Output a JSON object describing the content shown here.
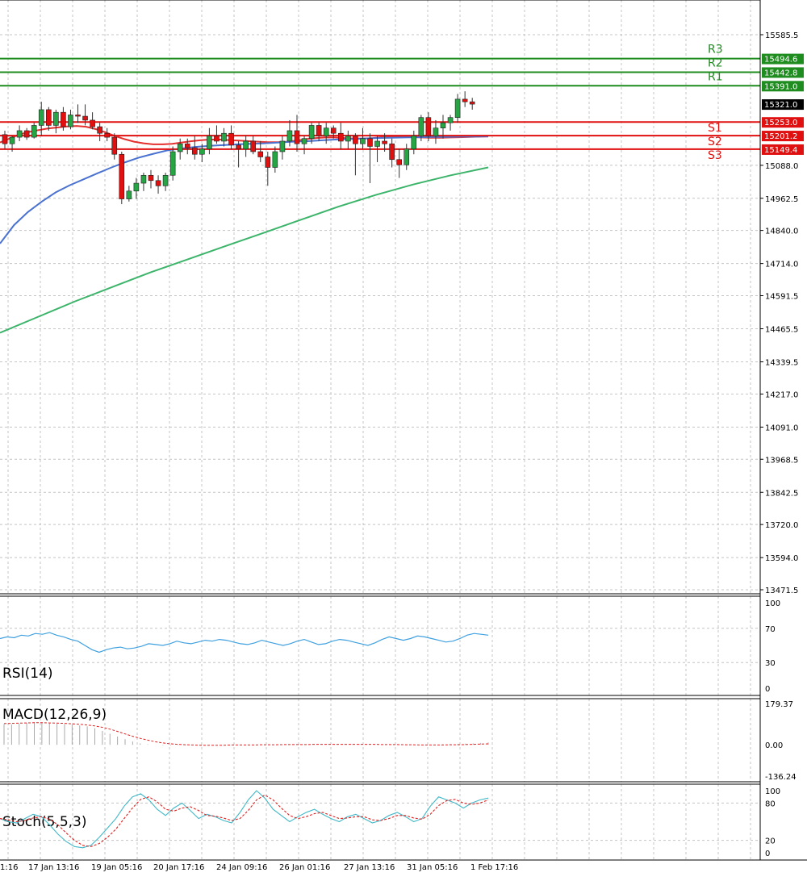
{
  "colors": {
    "grid": "#c4c4c4",
    "frame": "#000000",
    "bull_candle": "#26a544",
    "bear_candle": "#e01010",
    "resistance": "#1e8c1e",
    "support": "#e01010",
    "ma_red": "#e53030",
    "ma_blue": "#4a72d0",
    "ma_green": "#3cb46a",
    "rsi": "#3fa0e0",
    "macd_hist": "#a8a8a8",
    "macd_signal": "#e02020",
    "stoch_main": "#40b8c8",
    "stoch_signal": "#e02020",
    "price_tag_current": "#000000"
  },
  "chart_data": [
    {
      "type": "candlestick",
      "panel": "price",
      "ylim": [
        13471.5,
        15660
      ],
      "y_axis_ticks": [
        "15585.5",
        "15088.0",
        "14962.5",
        "14840.0",
        "14714.0",
        "14591.5",
        "14465.5",
        "14339.5",
        "14217.0",
        "14091.0",
        "13968.5",
        "13842.5",
        "13720.0",
        "13594.0",
        "13471.5"
      ],
      "x_axis_ticks": [
        "1:16",
        "17 Jan 13:16",
        "19 Jan 05:16",
        "20 Jan 17:16",
        "24 Jan 09:16",
        "26 Jan 01:16",
        "27 Jan 13:16",
        "31 Jan 05:16",
        "1 Feb 17:16"
      ],
      "current_price": "15321.0",
      "levels": [
        {
          "name": "R3",
          "value": 15494.6,
          "label": "15494.6",
          "kind": "resistance"
        },
        {
          "name": "R2",
          "value": 15442.8,
          "label": "15442.8",
          "kind": "resistance"
        },
        {
          "name": "R1",
          "value": 15391.0,
          "label": "15391.0",
          "kind": "resistance"
        },
        {
          "name": "S1",
          "value": 15253.0,
          "label": "15253.0",
          "kind": "support"
        },
        {
          "name": "S2",
          "value": 15201.2,
          "label": "15201.2",
          "kind": "support"
        },
        {
          "name": "S3",
          "value": 15149.4,
          "label": "15149.4",
          "kind": "support"
        }
      ],
      "pivot_labels": [
        "R3",
        "R2",
        "R1",
        "S1",
        "S2",
        "S3"
      ],
      "candles": [
        [
          15205,
          15220,
          15150,
          15170
        ],
        [
          15170,
          15200,
          15140,
          15195
        ],
        [
          15195,
          15240,
          15180,
          15220
        ],
        [
          15220,
          15230,
          15185,
          15195
        ],
        [
          15195,
          15250,
          15190,
          15240
        ],
        [
          15240,
          15330,
          15200,
          15300
        ],
        [
          15300,
          15310,
          15220,
          15240
        ],
        [
          15240,
          15300,
          15210,
          15290
        ],
        [
          15290,
          15310,
          15220,
          15235
        ],
        [
          15235,
          15300,
          15225,
          15280
        ],
        [
          15280,
          15320,
          15250,
          15275
        ],
        [
          15275,
          15320,
          15240,
          15260
        ],
        [
          15260,
          15290,
          15225,
          15235
        ],
        [
          15235,
          15250,
          15180,
          15210
        ],
        [
          15210,
          15230,
          15180,
          15195
        ],
        [
          15195,
          15210,
          15110,
          15130
        ],
        [
          15130,
          15140,
          14940,
          14960
        ],
        [
          14960,
          15010,
          14950,
          14990
        ],
        [
          14990,
          15040,
          14960,
          15020
        ],
        [
          15020,
          15060,
          14990,
          15050
        ],
        [
          15050,
          15070,
          15000,
          15030
        ],
        [
          15030,
          15050,
          14980,
          15010
        ],
        [
          15010,
          15060,
          14990,
          15050
        ],
        [
          15050,
          15160,
          15030,
          15140
        ],
        [
          15140,
          15190,
          15110,
          15170
        ],
        [
          15170,
          15190,
          15130,
          15155
        ],
        [
          15155,
          15200,
          15110,
          15130
        ],
        [
          15130,
          15170,
          15100,
          15150
        ],
        [
          15150,
          15230,
          15130,
          15200
        ],
        [
          15200,
          15240,
          15170,
          15180
        ],
        [
          15180,
          15230,
          15160,
          15210
        ],
        [
          15210,
          15240,
          15150,
          15165
        ],
        [
          15165,
          15180,
          15080,
          15150
        ],
        [
          15150,
          15200,
          15120,
          15180
        ],
        [
          15180,
          15200,
          15130,
          15140
        ],
        [
          15140,
          15180,
          15100,
          15120
        ],
        [
          15120,
          15140,
          15010,
          15080
        ],
        [
          15080,
          15160,
          15060,
          15140
        ],
        [
          15140,
          15200,
          15110,
          15180
        ],
        [
          15180,
          15260,
          15160,
          15220
        ],
        [
          15220,
          15280,
          15140,
          15170
        ],
        [
          15170,
          15200,
          15130,
          15190
        ],
        [
          15190,
          15250,
          15170,
          15240
        ],
        [
          15240,
          15250,
          15180,
          15200
        ],
        [
          15200,
          15250,
          15170,
          15230
        ],
        [
          15230,
          15240,
          15190,
          15210
        ],
        [
          15210,
          15250,
          15150,
          15180
        ],
        [
          15180,
          15220,
          15150,
          15200
        ],
        [
          15200,
          15210,
          15050,
          15170
        ],
        [
          15170,
          15230,
          15150,
          15190
        ],
        [
          15190,
          15210,
          15020,
          15160
        ],
        [
          15160,
          15200,
          15100,
          15180
        ],
        [
          15180,
          15210,
          15140,
          15170
        ],
        [
          15170,
          15190,
          15080,
          15110
        ],
        [
          15110,
          15150,
          15040,
          15090
        ],
        [
          15090,
          15170,
          15070,
          15150
        ],
        [
          15150,
          15220,
          15130,
          15200
        ],
        [
          15200,
          15280,
          15180,
          15270
        ],
        [
          15270,
          15290,
          15180,
          15200
        ],
        [
          15200,
          15260,
          15170,
          15230
        ],
        [
          15230,
          15280,
          15190,
          15250
        ],
        [
          15250,
          15280,
          15220,
          15270
        ],
        [
          15270,
          15360,
          15250,
          15340
        ],
        [
          15340,
          15370,
          15310,
          15330
        ],
        [
          15330,
          15345,
          15300,
          15321
        ]
      ],
      "series": [
        {
          "name": "",
          "color_key": "ma_red",
          "values": [
            15175,
            15190,
            15205,
            15215,
            15222,
            15228,
            15232,
            15236,
            15238,
            15235,
            15226,
            15214,
            15200,
            15188,
            15178,
            15172,
            15168,
            15168,
            15170,
            15175,
            15180,
            15184,
            15186,
            15186,
            15184,
            15182,
            15180,
            15178,
            15176,
            15176,
            15178,
            15182,
            15188,
            15192,
            15194,
            15194,
            15192,
            15190,
            15190,
            15192,
            15196,
            15198,
            15198,
            15196,
            15194,
            15193,
            15193,
            15194,
            15195,
            15196,
            15197,
            15198
          ]
        },
        {
          "name": "",
          "color_key": "ma_blue",
          "values": [
            14790,
            14860,
            14910,
            14950,
            14985,
            15012,
            15035,
            15058,
            15080,
            15100,
            15118,
            15132,
            15145,
            15152,
            15158,
            15162,
            15165,
            15168,
            15170,
            15172,
            15175,
            15178,
            15180,
            15183,
            15186,
            15188,
            15190,
            15192,
            15193,
            15194,
            15195,
            15196,
            15196,
            15197,
            15197,
            15198
          ]
        },
        {
          "name": "",
          "color_key": "ma_green",
          "values": [
            14450,
            14510,
            14570,
            14625,
            14680,
            14730,
            14780,
            14830,
            14880,
            14930,
            14975,
            15015,
            15050,
            15080
          ]
        }
      ]
    },
    {
      "type": "line",
      "panel": "rsi",
      "title": "RSI(14)",
      "ylim": [
        0,
        100
      ],
      "y_axis_ticks": [
        "100",
        "70",
        "30",
        "0"
      ],
      "series": [
        {
          "name": "",
          "color_key": "rsi",
          "values": [
            58,
            60,
            59,
            62,
            61,
            64,
            63,
            65,
            62,
            60,
            57,
            55,
            50,
            45,
            42,
            45,
            47,
            48,
            46,
            47,
            49,
            52,
            51,
            50,
            52,
            55,
            53,
            52,
            54,
            56,
            55,
            57,
            56,
            54,
            52,
            51,
            53,
            56,
            54,
            52,
            50,
            52,
            55,
            57,
            54,
            51,
            52,
            55,
            57,
            56,
            54,
            52,
            50,
            53,
            57,
            60,
            58,
            56,
            58,
            61,
            60,
            58,
            56,
            54,
            55,
            58,
            62,
            64,
            63,
            62
          ]
        }
      ]
    },
    {
      "type": "bar",
      "panel": "macd",
      "title": "MACD(12,26,9)",
      "ylim": [
        -136.24,
        179.37
      ],
      "y_axis_ticks": [
        "179.37",
        "0.00",
        "-136.24"
      ],
      "histogram": [
        90,
        88,
        92,
        95,
        98,
        96,
        94,
        92,
        90,
        88,
        84,
        80,
        72,
        60,
        48,
        36,
        24,
        14,
        6,
        2,
        0,
        -2,
        -3,
        -2,
        -2,
        -1,
        -1,
        0,
        0,
        0,
        0,
        0,
        0,
        0,
        0,
        1,
        1,
        1,
        1,
        2,
        2,
        2,
        2,
        2,
        2,
        2,
        2,
        2,
        1,
        1,
        1,
        0,
        0,
        -1,
        -1,
        -1,
        0,
        1,
        2,
        3,
        4,
        5,
        6,
        8,
        10
      ],
      "series": [
        {
          "name": "",
          "color_key": "macd_signal",
          "values": [
            92,
            93,
            94,
            95,
            96,
            96,
            95,
            94,
            93,
            91,
            89,
            86,
            82,
            76,
            68,
            58,
            47,
            37,
            28,
            20,
            13,
            8,
            4,
            2,
            0,
            -1,
            -2,
            -2,
            -2,
            -2,
            -1,
            -1,
            -1,
            -1,
            0,
            0,
            0,
            1,
            1,
            1,
            1,
            2,
            2,
            2,
            2,
            2,
            2,
            2,
            2,
            2,
            1,
            1,
            1,
            0,
            0,
            -1,
            -1,
            -1,
            -1,
            0,
            0,
            1,
            2,
            3,
            4
          ]
        }
      ]
    },
    {
      "type": "line",
      "panel": "stoch",
      "title": "Stoch(5,5,3)",
      "ylim": [
        0,
        100
      ],
      "y_axis_ticks": [
        "100",
        "80",
        "20",
        "0"
      ],
      "series": [
        {
          "name": "",
          "color_key": "stoch_main",
          "values": [
            55,
            50,
            48,
            55,
            62,
            58,
            45,
            30,
            18,
            10,
            8,
            12,
            25,
            40,
            55,
            75,
            90,
            95,
            85,
            70,
            60,
            72,
            80,
            68,
            55,
            62,
            58,
            52,
            48,
            65,
            85,
            100,
            88,
            70,
            60,
            50,
            58,
            65,
            70,
            62,
            55,
            50,
            58,
            62,
            55,
            48,
            52,
            60,
            65,
            58,
            50,
            55,
            75,
            90,
            85,
            80,
            72,
            80,
            85,
            88
          ]
        },
        {
          "name": "",
          "color_key": "stoch_signal",
          "values": [
            55,
            53,
            50,
            52,
            56,
            58,
            54,
            45,
            32,
            20,
            12,
            10,
            15,
            25,
            38,
            55,
            72,
            86,
            90,
            82,
            70,
            67,
            72,
            74,
            68,
            60,
            59,
            56,
            52,
            55,
            68,
            85,
            93,
            85,
            72,
            60,
            55,
            58,
            63,
            65,
            60,
            55,
            56,
            58,
            58,
            53,
            52,
            55,
            60,
            60,
            56,
            54,
            62,
            76,
            84,
            86,
            80,
            78,
            80,
            85
          ]
        }
      ]
    }
  ]
}
